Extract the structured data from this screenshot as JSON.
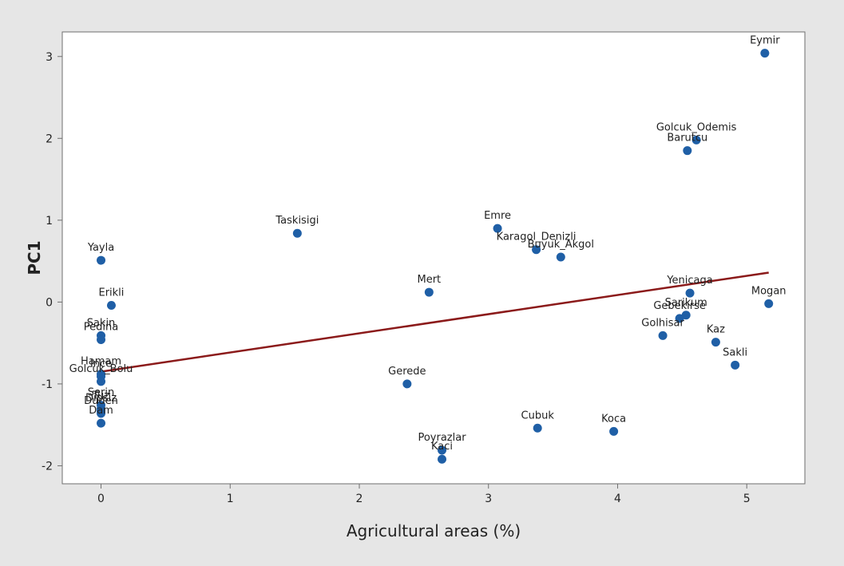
{
  "chart_data": {
    "type": "scatter",
    "title": "",
    "xlabel": "Agricultural areas (%)",
    "ylabel": "PC1",
    "xlim": [
      -0.3,
      5.45
    ],
    "ylim": [
      -2.22,
      3.3
    ],
    "xticks": [
      0,
      1,
      2,
      3,
      4,
      5
    ],
    "yticks": [
      -2,
      -1,
      0,
      1,
      2,
      3
    ],
    "grid": false,
    "point_color": "#1f5fa6",
    "fit_line_color": "#8b1a1a",
    "points": [
      {
        "label": "Eymir",
        "x": 5.14,
        "y": 3.04
      },
      {
        "label": "Golcuk_Odemis",
        "x": 4.61,
        "y": 1.98
      },
      {
        "label": "Barutcu",
        "x": 4.54,
        "y": 1.85
      },
      {
        "label": "Taskisigi",
        "x": 1.52,
        "y": 0.84
      },
      {
        "label": "Emre",
        "x": 3.07,
        "y": 0.9
      },
      {
        "label": "Karagol_Denizli",
        "x": 3.37,
        "y": 0.64
      },
      {
        "label": "Buyuk_Akgol",
        "x": 3.56,
        "y": 0.55
      },
      {
        "label": "Yayla",
        "x": 0.0,
        "y": 0.51
      },
      {
        "label": "Mert",
        "x": 2.54,
        "y": 0.12
      },
      {
        "label": "Yenicaga",
        "x": 4.56,
        "y": 0.11
      },
      {
        "label": "Mogan",
        "x": 5.17,
        "y": -0.02
      },
      {
        "label": "Erikli",
        "x": 0.08,
        "y": -0.04
      },
      {
        "label": "Sarikum",
        "x": 4.53,
        "y": -0.16
      },
      {
        "label": "Gebekirse",
        "x": 4.48,
        "y": -0.2
      },
      {
        "label": "Sakin",
        "x": 0.0,
        "y": -0.41
      },
      {
        "label": "Pedina",
        "x": 0.0,
        "y": -0.46
      },
      {
        "label": "Golhisar",
        "x": 4.35,
        "y": -0.41
      },
      {
        "label": "Kaz",
        "x": 4.76,
        "y": -0.49
      },
      {
        "label": "Sakli",
        "x": 4.91,
        "y": -0.77
      },
      {
        "label": "Hamam",
        "x": 0.0,
        "y": -0.88
      },
      {
        "label": "Ince",
        "x": 0.0,
        "y": -0.91
      },
      {
        "label": "Golcuk_Bolu",
        "x": 0.0,
        "y": -0.97
      },
      {
        "label": "Gerede",
        "x": 2.37,
        "y": -1.0
      },
      {
        "label": "Serin",
        "x": 0.0,
        "y": -1.26
      },
      {
        "label": "Tuz",
        "x": 0.0,
        "y": -1.3
      },
      {
        "label": "Dipsiz",
        "x": 0.0,
        "y": -1.33
      },
      {
        "label": "Duden",
        "x": 0.0,
        "y": -1.36
      },
      {
        "label": "Dam",
        "x": 0.0,
        "y": -1.48
      },
      {
        "label": "Cubuk",
        "x": 3.38,
        "y": -1.54
      },
      {
        "label": "Koca",
        "x": 3.97,
        "y": -1.58
      },
      {
        "label": "Poyrazlar",
        "x": 2.64,
        "y": -1.81
      },
      {
        "label": "Kaci",
        "x": 2.64,
        "y": -1.92
      }
    ],
    "fit_line": {
      "x": [
        0.0,
        5.17
      ],
      "y": [
        -0.85,
        0.36
      ]
    }
  }
}
